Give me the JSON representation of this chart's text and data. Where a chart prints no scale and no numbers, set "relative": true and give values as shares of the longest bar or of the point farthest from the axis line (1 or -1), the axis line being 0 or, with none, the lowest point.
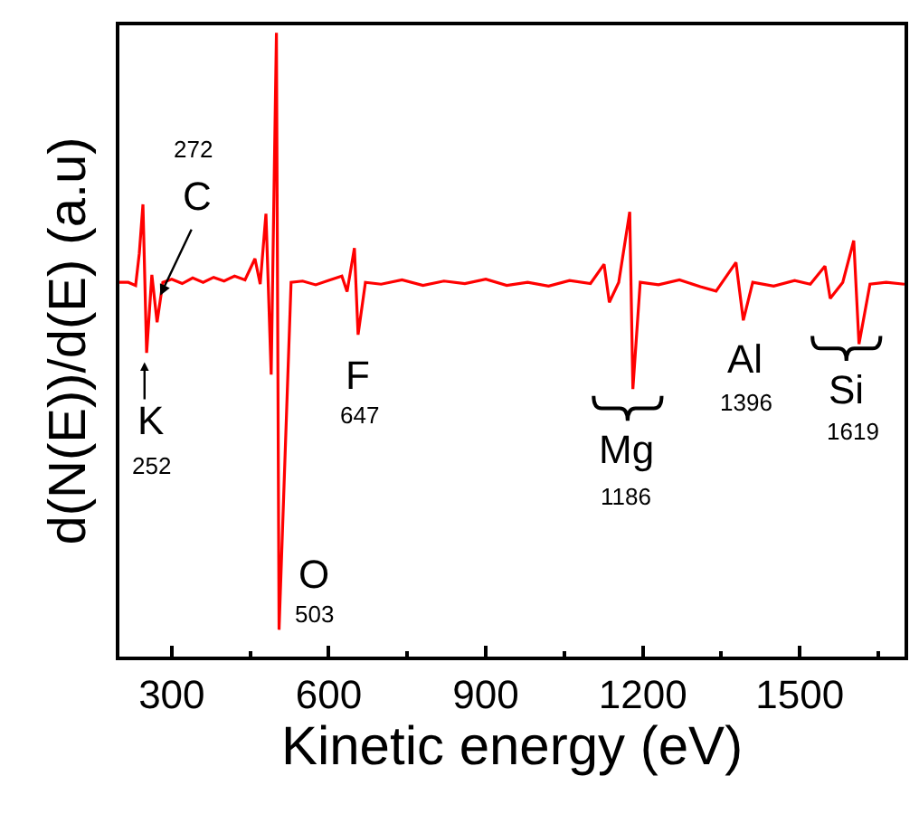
{
  "chart_data": {
    "type": "line",
    "relative": true,
    "xlabel": "Kinetic energy (eV)",
    "ylabel": "d(N(E))/d(E) (a.u)",
    "xlim": [
      200,
      1700
    ],
    "xticks": [
      300,
      {
        "value": 450,
        "label": null
      },
      600,
      {
        "value": 750,
        "label": null
      },
      900,
      {
        "value": 1050,
        "label": null
      },
      1200,
      {
        "value": 1350,
        "label": null
      },
      1500,
      {
        "value": 1650,
        "label": null
      }
    ],
    "marker": "none",
    "line_style": "solid",
    "series": [
      {
        "color": "#ff0000",
        "x": [
          200,
          217,
          231,
          238,
          245,
          252,
          262,
          272,
          283,
          300,
          320,
          340,
          360,
          380,
          400,
          420,
          440,
          459,
          469,
          480,
          490,
          500,
          505,
          528,
          550,
          575,
          600,
          625,
          635,
          649,
          656,
          670,
          700,
          740,
          780,
          820,
          860,
          900,
          940,
          980,
          1020,
          1060,
          1100,
          1126,
          1136,
          1154,
          1175,
          1181,
          1195,
          1230,
          1270,
          1310,
          1340,
          1378,
          1392,
          1410,
          1450,
          1490,
          1520,
          1548,
          1558,
          1582,
          1603,
          1613,
          1634,
          1665,
          1700
        ],
        "values": [
          0.6,
          0.6,
          0.595,
          0.646,
          0.725,
          0.487,
          0.612,
          0.536,
          0.6,
          0.605,
          0.598,
          0.607,
          0.6,
          0.608,
          0.602,
          0.61,
          0.604,
          0.638,
          0.597,
          0.71,
          0.452,
          1.0,
          0.043,
          0.6,
          0.602,
          0.596,
          0.603,
          0.61,
          0.585,
          0.655,
          0.516,
          0.6,
          0.597,
          0.604,
          0.595,
          0.602,
          0.598,
          0.605,
          0.595,
          0.6,
          0.594,
          0.603,
          0.598,
          0.629,
          0.568,
          0.6,
          0.713,
          0.429,
          0.6,
          0.596,
          0.604,
          0.593,
          0.586,
          0.632,
          0.539,
          0.6,
          0.594,
          0.603,
          0.597,
          0.626,
          0.574,
          0.6,
          0.667,
          0.501,
          0.597,
          0.6,
          0.597
        ]
      }
    ],
    "annotations": [
      "272",
      "C",
      "K",
      "252",
      "F",
      "647",
      "O",
      "503",
      "Mg",
      "1186",
      "Al",
      "1396",
      "Si",
      "1619"
    ]
  }
}
